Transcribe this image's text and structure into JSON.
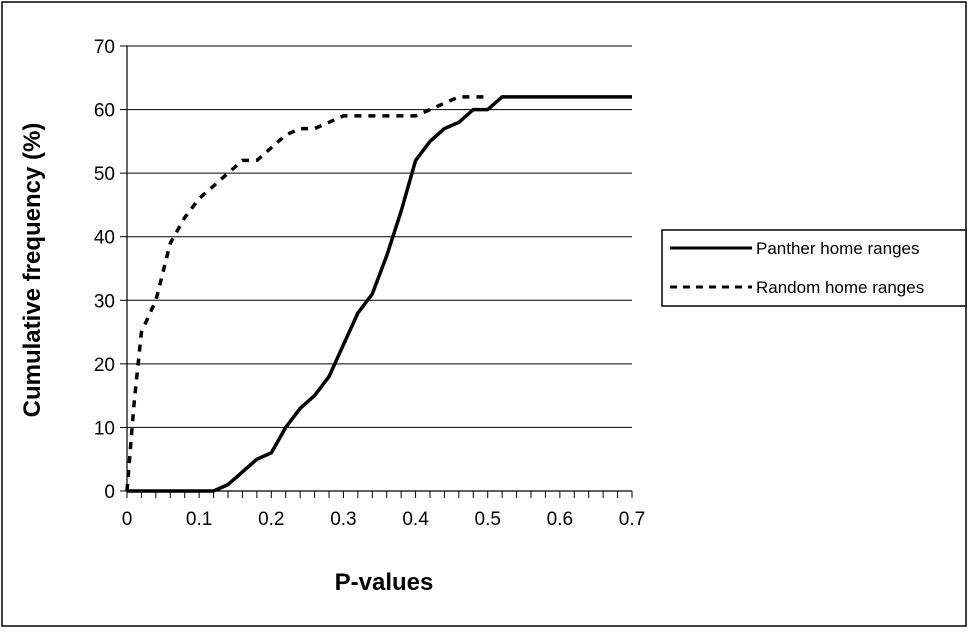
{
  "chart_data": {
    "type": "line",
    "title": "",
    "xlabel": "P-values",
    "ylabel": "Cumulative frequency (%)",
    "xlim": [
      0,
      0.7
    ],
    "ylim": [
      0,
      70
    ],
    "xticks": [
      "0",
      "0.1",
      "0.2",
      "0.3",
      "0.4",
      "0.5",
      "0.6",
      "0.7"
    ],
    "yticks": [
      "0",
      "10",
      "20",
      "30",
      "40",
      "50",
      "60",
      "70"
    ],
    "grid": "horizontal",
    "legend_position": "right",
    "series": [
      {
        "name": "Panther home ranges",
        "style": "solid",
        "color": "#000000",
        "x": [
          0,
          0.02,
          0.04,
          0.06,
          0.08,
          0.1,
          0.12,
          0.14,
          0.16,
          0.18,
          0.2,
          0.22,
          0.24,
          0.26,
          0.28,
          0.3,
          0.32,
          0.34,
          0.36,
          0.38,
          0.4,
          0.42,
          0.44,
          0.46,
          0.48,
          0.5,
          0.52,
          0.54,
          0.56,
          0.58,
          0.6,
          0.62,
          0.64,
          0.66,
          0.68,
          0.7
        ],
        "y": [
          0,
          0,
          0,
          0,
          0,
          0,
          0,
          1,
          3,
          5,
          6,
          10,
          13,
          15,
          18,
          23,
          28,
          31,
          37,
          44,
          52,
          55,
          57,
          58,
          60,
          60,
          62,
          62,
          62,
          62,
          62,
          62,
          62,
          62,
          62,
          62
        ]
      },
      {
        "name": "Random home ranges",
        "style": "dashed",
        "color": "#000000",
        "x": [
          0,
          0.01,
          0.02,
          0.04,
          0.06,
          0.08,
          0.1,
          0.12,
          0.14,
          0.16,
          0.18,
          0.2,
          0.22,
          0.24,
          0.26,
          0.28,
          0.3,
          0.32,
          0.34,
          0.36,
          0.38,
          0.4,
          0.42,
          0.44,
          0.46,
          0.48,
          0.5
        ],
        "y": [
          0,
          14,
          25,
          30,
          39,
          43,
          46,
          48,
          50,
          52,
          52,
          54,
          56,
          57,
          57,
          58,
          59,
          59,
          59,
          59,
          59,
          59,
          60,
          61,
          62,
          62,
          62
        ]
      }
    ]
  }
}
